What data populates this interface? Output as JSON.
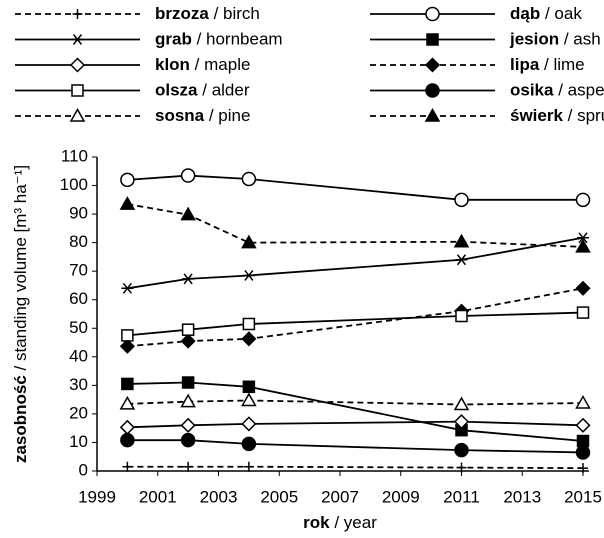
{
  "chart_data": {
    "type": "line",
    "x_label": "rok / year",
    "y_label": "zasobność / standing volume [m³ ha⁻¹]",
    "x": [
      2000,
      2002,
      2004,
      2011,
      2015
    ],
    "xlim": [
      1999,
      2015
    ],
    "xticks": [
      1999,
      2001,
      2003,
      2005,
      2007,
      2009,
      2011,
      2013,
      2015
    ],
    "ylim": [
      0,
      110
    ],
    "yticks": [
      0,
      10,
      20,
      30,
      40,
      50,
      60,
      70,
      80,
      90,
      100,
      110
    ],
    "grid": false,
    "series": [
      {
        "name": "brzoza / birch",
        "color": "#000000",
        "dashed": true,
        "marker": "plus",
        "marker_fill": "black",
        "values": [
          1.5,
          1.5,
          1.5,
          1.2,
          1.0
        ]
      },
      {
        "name": "dąb / oak",
        "color": "#000000",
        "dashed": false,
        "marker": "circle",
        "marker_fill": "white",
        "values": [
          102,
          103.5,
          102.3,
          95,
          95
        ]
      },
      {
        "name": "grab / hornbeam",
        "color": "#000000",
        "dashed": false,
        "marker": "asterisk",
        "marker_fill": "black",
        "values": [
          64,
          67.3,
          68.5,
          74,
          81.7
        ]
      },
      {
        "name": "jesion / ash",
        "color": "#000000",
        "dashed": false,
        "marker": "square",
        "marker_fill": "black",
        "values": [
          30.5,
          31,
          29.5,
          14.3,
          10.5
        ]
      },
      {
        "name": "klon / maple",
        "color": "#000000",
        "dashed": false,
        "marker": "diamond",
        "marker_fill": "white",
        "values": [
          15.3,
          16,
          16.5,
          17.3,
          16
        ]
      },
      {
        "name": "lipa / lime",
        "color": "#000000",
        "dashed": true,
        "marker": "diamond",
        "marker_fill": "black",
        "values": [
          43.7,
          45.5,
          46.3,
          56,
          64
        ]
      },
      {
        "name": "olsza / alder",
        "color": "#000000",
        "dashed": false,
        "marker": "square",
        "marker_fill": "white",
        "values": [
          47.5,
          49.5,
          51.5,
          54.3,
          55.5
        ]
      },
      {
        "name": "osika / aspen",
        "color": "#000000",
        "dashed": false,
        "marker": "circle",
        "marker_fill": "black",
        "values": [
          10.8,
          10.8,
          9.5,
          7.3,
          6.5
        ]
      },
      {
        "name": "sosna / pine",
        "color": "#000000",
        "dashed": true,
        "marker": "triangle",
        "marker_fill": "white",
        "values": [
          23.5,
          24.3,
          24.7,
          23.3,
          23.8
        ]
      },
      {
        "name": "świerk / spruce",
        "color": "#000000",
        "dashed": true,
        "marker": "triangle",
        "marker_fill": "black",
        "values": [
          93.5,
          89.8,
          80,
          80.3,
          78.5
        ]
      }
    ]
  }
}
